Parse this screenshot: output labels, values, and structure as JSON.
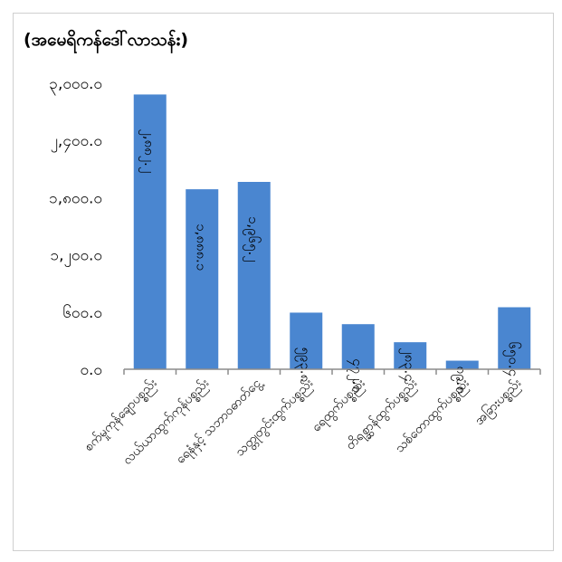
{
  "chart_data": {
    "type": "bar",
    "unit_label": "(အမေရိကန်ဒေါ်လာသန်း)",
    "categories": [
      "စက်မှုကုန်ချောပစ္စည်း",
      "လယ်ယာထွက်ကုန်ပစ္စည်း",
      "ရေနံနှင့် သဘာဝဓာတ်ငွေ့",
      "သတ္တုတွင်းထွက်ပစ္စည်း",
      "ရေထွက်ပစ္စည်း",
      "တိရစ္ဆာန်ထွက်ပစ္စည်း",
      "သစ်တောထွက်ပစ္စည်း",
      "အခြားပစ္စည်း"
    ],
    "values": [
      2882.2,
      1888.1,
      1965.2,
      593.8,
      472.8,
      283.4,
      89.8,
      650.4
    ],
    "value_labels": [
      "၂,၈၈၂.၂",
      "၁,၈၈၈.၁",
      "၁,၉၆၅.၂",
      "၅၉၃.၈",
      "၄၇၂.၈",
      "၂၈၃.၄",
      "၈၉.၈",
      "၆၅၀.၄"
    ],
    "y_ticks": [
      0,
      600,
      1200,
      1800,
      2400,
      3000
    ],
    "y_tick_labels": [
      "၀.၀",
      "၆၀၀.၀",
      "၁,၂၀၀.၀",
      "၁,၈၀၀.၀",
      "၂,၄၀၀.၀",
      "၃,၀၀၀.၀"
    ],
    "ylim": [
      0,
      3000
    ],
    "bar_color": "#4a86d0",
    "grid": false,
    "legend": "none"
  }
}
